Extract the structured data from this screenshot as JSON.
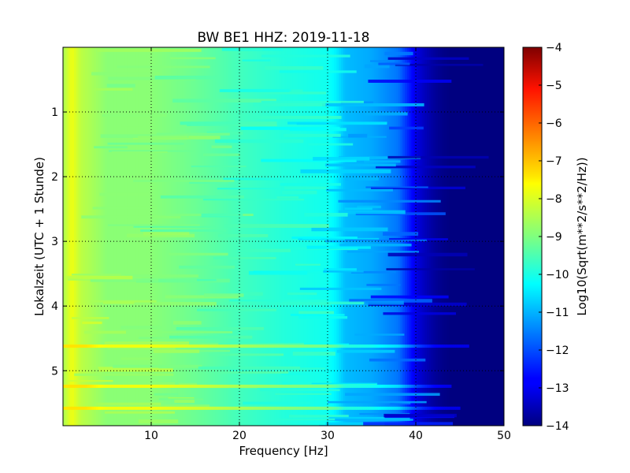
{
  "chart_data": {
    "type": "heatmap",
    "title": "BW BE1 HHZ: 2019-11-18",
    "xlabel": "Frequency [Hz]",
    "ylabel": "Lokalzeit (UTC + 1 Stunde)",
    "xlim": [
      0,
      50
    ],
    "ylim": [
      5.85,
      0
    ],
    "y_inverted": true,
    "xticks": [
      10,
      20,
      30,
      40,
      50
    ],
    "yticks": [
      1,
      2,
      3,
      4,
      5
    ],
    "grid": true,
    "colormap": "jet",
    "colorbar": {
      "label": "Log10(Sqrt(m**2/s**2/Hz))",
      "range": [
        -14,
        -4
      ],
      "ticks": [
        -4,
        -5,
        -6,
        -7,
        -8,
        -9,
        -10,
        -11,
        -12,
        -13,
        -14
      ]
    },
    "spectrum_profile": {
      "frequency_hz": [
        0,
        1,
        2,
        5,
        10,
        15,
        20,
        25,
        30,
        31,
        32,
        35,
        38,
        39,
        40,
        41,
        42,
        43,
        44,
        45,
        50
      ],
      "log10_amplitude": [
        -8.6,
        -7.9,
        -8.4,
        -8.9,
        -8.9,
        -9.2,
        -9.6,
        -9.9,
        -10.1,
        -10.4,
        -10.9,
        -11.1,
        -11.6,
        -12.3,
        -13.0,
        -13.4,
        -13.7,
        -13.9,
        -14.0,
        -14.0,
        -14.0
      ]
    },
    "high_energy_bands": [
      {
        "time_h": 4.62,
        "fmax_hz": 46
      },
      {
        "time_h": 5.24,
        "fmax_hz": 44
      },
      {
        "time_h": 5.58,
        "fmax_hz": 45
      }
    ]
  }
}
